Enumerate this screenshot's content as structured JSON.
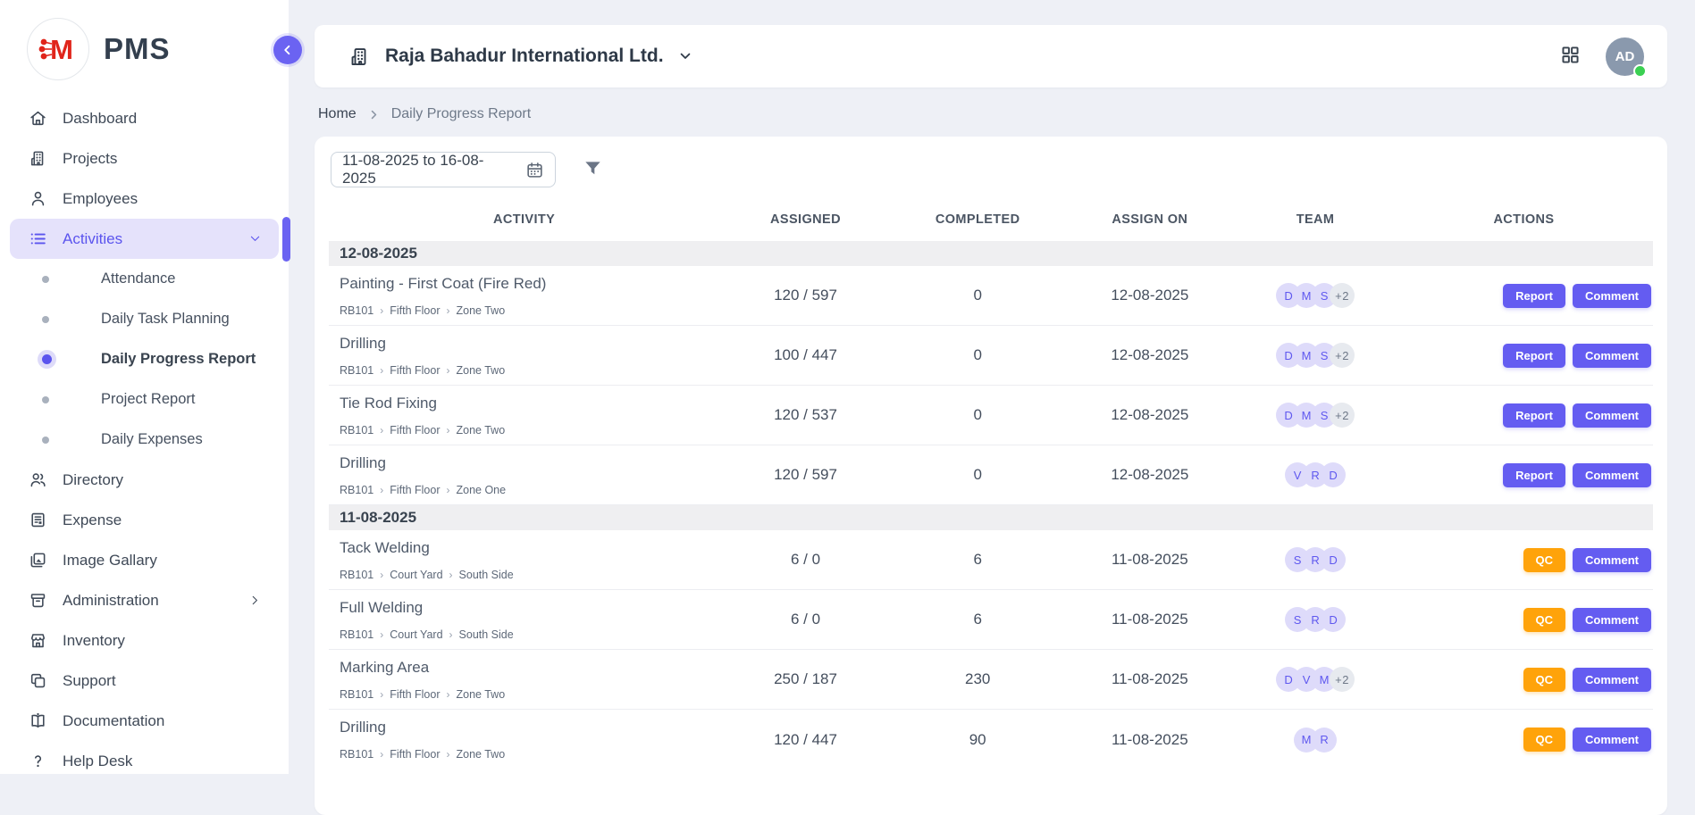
{
  "app": {
    "name": "PMS",
    "logo_letter": "M"
  },
  "colors": {
    "accent": "#645CF1",
    "accent_light": "#E5E2FB",
    "warning": "#FFA30A",
    "page_bg": "#EEF0F6",
    "logo_red": "#E0251B",
    "avatar_bg": "#8A99AD",
    "online_green": "#3BD052",
    "group_row_bg": "#EFEFF1"
  },
  "sidebar": {
    "collapse_icon": "chevron-left",
    "items": [
      {
        "type": "item",
        "label": "Dashboard",
        "icon": "home"
      },
      {
        "type": "item",
        "label": "Projects",
        "icon": "building"
      },
      {
        "type": "item",
        "label": "Employees",
        "icon": "person"
      },
      {
        "type": "item",
        "label": "Activities",
        "icon": "list",
        "active": true,
        "trailing": "chevron-down"
      },
      {
        "type": "child",
        "label": "Attendance"
      },
      {
        "type": "child",
        "label": "Daily Task Planning"
      },
      {
        "type": "child",
        "label": "Daily Progress Report",
        "active": true
      },
      {
        "type": "child",
        "label": "Project Report"
      },
      {
        "type": "child",
        "label": "Daily Expenses"
      },
      {
        "type": "item",
        "label": "Directory",
        "icon": "people"
      },
      {
        "type": "item",
        "label": "Expense",
        "icon": "receipt"
      },
      {
        "type": "item",
        "label": "Image Gallary",
        "icon": "gallery"
      },
      {
        "type": "item",
        "label": "Administration",
        "icon": "archive",
        "trailing": "chevron-right"
      },
      {
        "type": "item",
        "label": "Inventory",
        "icon": "store"
      },
      {
        "type": "item",
        "label": "Support",
        "icon": "copy"
      },
      {
        "type": "item",
        "label": "Documentation",
        "icon": "book"
      },
      {
        "type": "item",
        "label": "Help Desk",
        "icon": "help"
      }
    ]
  },
  "header": {
    "company": "Raja Bahadur International Ltd.",
    "company_icon": "building",
    "apps_icon": "grid",
    "avatar": "AD"
  },
  "breadcrumb": {
    "home": "Home",
    "current": "Daily Progress Report"
  },
  "filters": {
    "date_range": "11-08-2025 to 16-08-2025",
    "calendar_icon": "calendar",
    "filter_icon": "funnel"
  },
  "table": {
    "columns": [
      "ACTIVITY",
      "ASSIGNED",
      "COMPLETED",
      "ASSIGN ON",
      "TEAM",
      "ACTIONS"
    ],
    "groups": [
      {
        "date": "12-08-2025",
        "rows": [
          {
            "activity": "Painting - First Coat (Fire Red)",
            "path": [
              "RB101",
              "Fifth Floor",
              "Zone Two"
            ],
            "assigned": "120 / 597",
            "completed": "0",
            "assign_on": "12-08-2025",
            "team": [
              "D",
              "M",
              "S"
            ],
            "team_more": "+2",
            "actions": [
              {
                "label": "Report",
                "variant": "primary"
              },
              {
                "label": "Comment",
                "variant": "primary"
              }
            ]
          },
          {
            "activity": "Drilling",
            "path": [
              "RB101",
              "Fifth Floor",
              "Zone Two"
            ],
            "assigned": "100 / 447",
            "completed": "0",
            "assign_on": "12-08-2025",
            "team": [
              "D",
              "M",
              "S"
            ],
            "team_more": "+2",
            "actions": [
              {
                "label": "Report",
                "variant": "primary"
              },
              {
                "label": "Comment",
                "variant": "primary"
              }
            ]
          },
          {
            "activity": "Tie Rod Fixing",
            "path": [
              "RB101",
              "Fifth Floor",
              "Zone Two"
            ],
            "assigned": "120 / 537",
            "completed": "0",
            "assign_on": "12-08-2025",
            "team": [
              "D",
              "M",
              "S"
            ],
            "team_more": "+2",
            "actions": [
              {
                "label": "Report",
                "variant": "primary"
              },
              {
                "label": "Comment",
                "variant": "primary"
              }
            ]
          },
          {
            "activity": "Drilling",
            "path": [
              "RB101",
              "Fifth Floor",
              "Zone One"
            ],
            "assigned": "120 / 597",
            "completed": "0",
            "assign_on": "12-08-2025",
            "team": [
              "V",
              "R",
              "D"
            ],
            "actions": [
              {
                "label": "Report",
                "variant": "primary"
              },
              {
                "label": "Comment",
                "variant": "primary"
              }
            ]
          }
        ]
      },
      {
        "date": "11-08-2025",
        "rows": [
          {
            "activity": "Tack Welding",
            "path": [
              "RB101",
              "Court Yard",
              "South Side"
            ],
            "assigned": "6 / 0",
            "completed": "6",
            "assign_on": "11-08-2025",
            "team": [
              "S",
              "R",
              "D"
            ],
            "actions": [
              {
                "label": "QC",
                "variant": "warning"
              },
              {
                "label": "Comment",
                "variant": "primary"
              }
            ]
          },
          {
            "activity": "Full Welding",
            "path": [
              "RB101",
              "Court Yard",
              "South Side"
            ],
            "assigned": "6 / 0",
            "completed": "6",
            "assign_on": "11-08-2025",
            "team": [
              "S",
              "R",
              "D"
            ],
            "actions": [
              {
                "label": "QC",
                "variant": "warning"
              },
              {
                "label": "Comment",
                "variant": "primary"
              }
            ]
          },
          {
            "activity": "Marking Area",
            "path": [
              "RB101",
              "Fifth Floor",
              "Zone Two"
            ],
            "assigned": "250 / 187",
            "completed": "230",
            "assign_on": "11-08-2025",
            "team": [
              "D",
              "V",
              "M"
            ],
            "team_more": "+2",
            "actions": [
              {
                "label": "QC",
                "variant": "warning"
              },
              {
                "label": "Comment",
                "variant": "primary"
              }
            ]
          },
          {
            "activity": "Drilling",
            "path": [
              "RB101",
              "Fifth Floor",
              "Zone Two"
            ],
            "assigned": "120 / 447",
            "completed": "90",
            "assign_on": "11-08-2025",
            "team": [
              "M",
              "R"
            ],
            "actions": [
              {
                "label": "QC",
                "variant": "warning"
              },
              {
                "label": "Comment",
                "variant": "primary"
              }
            ]
          }
        ]
      }
    ]
  }
}
